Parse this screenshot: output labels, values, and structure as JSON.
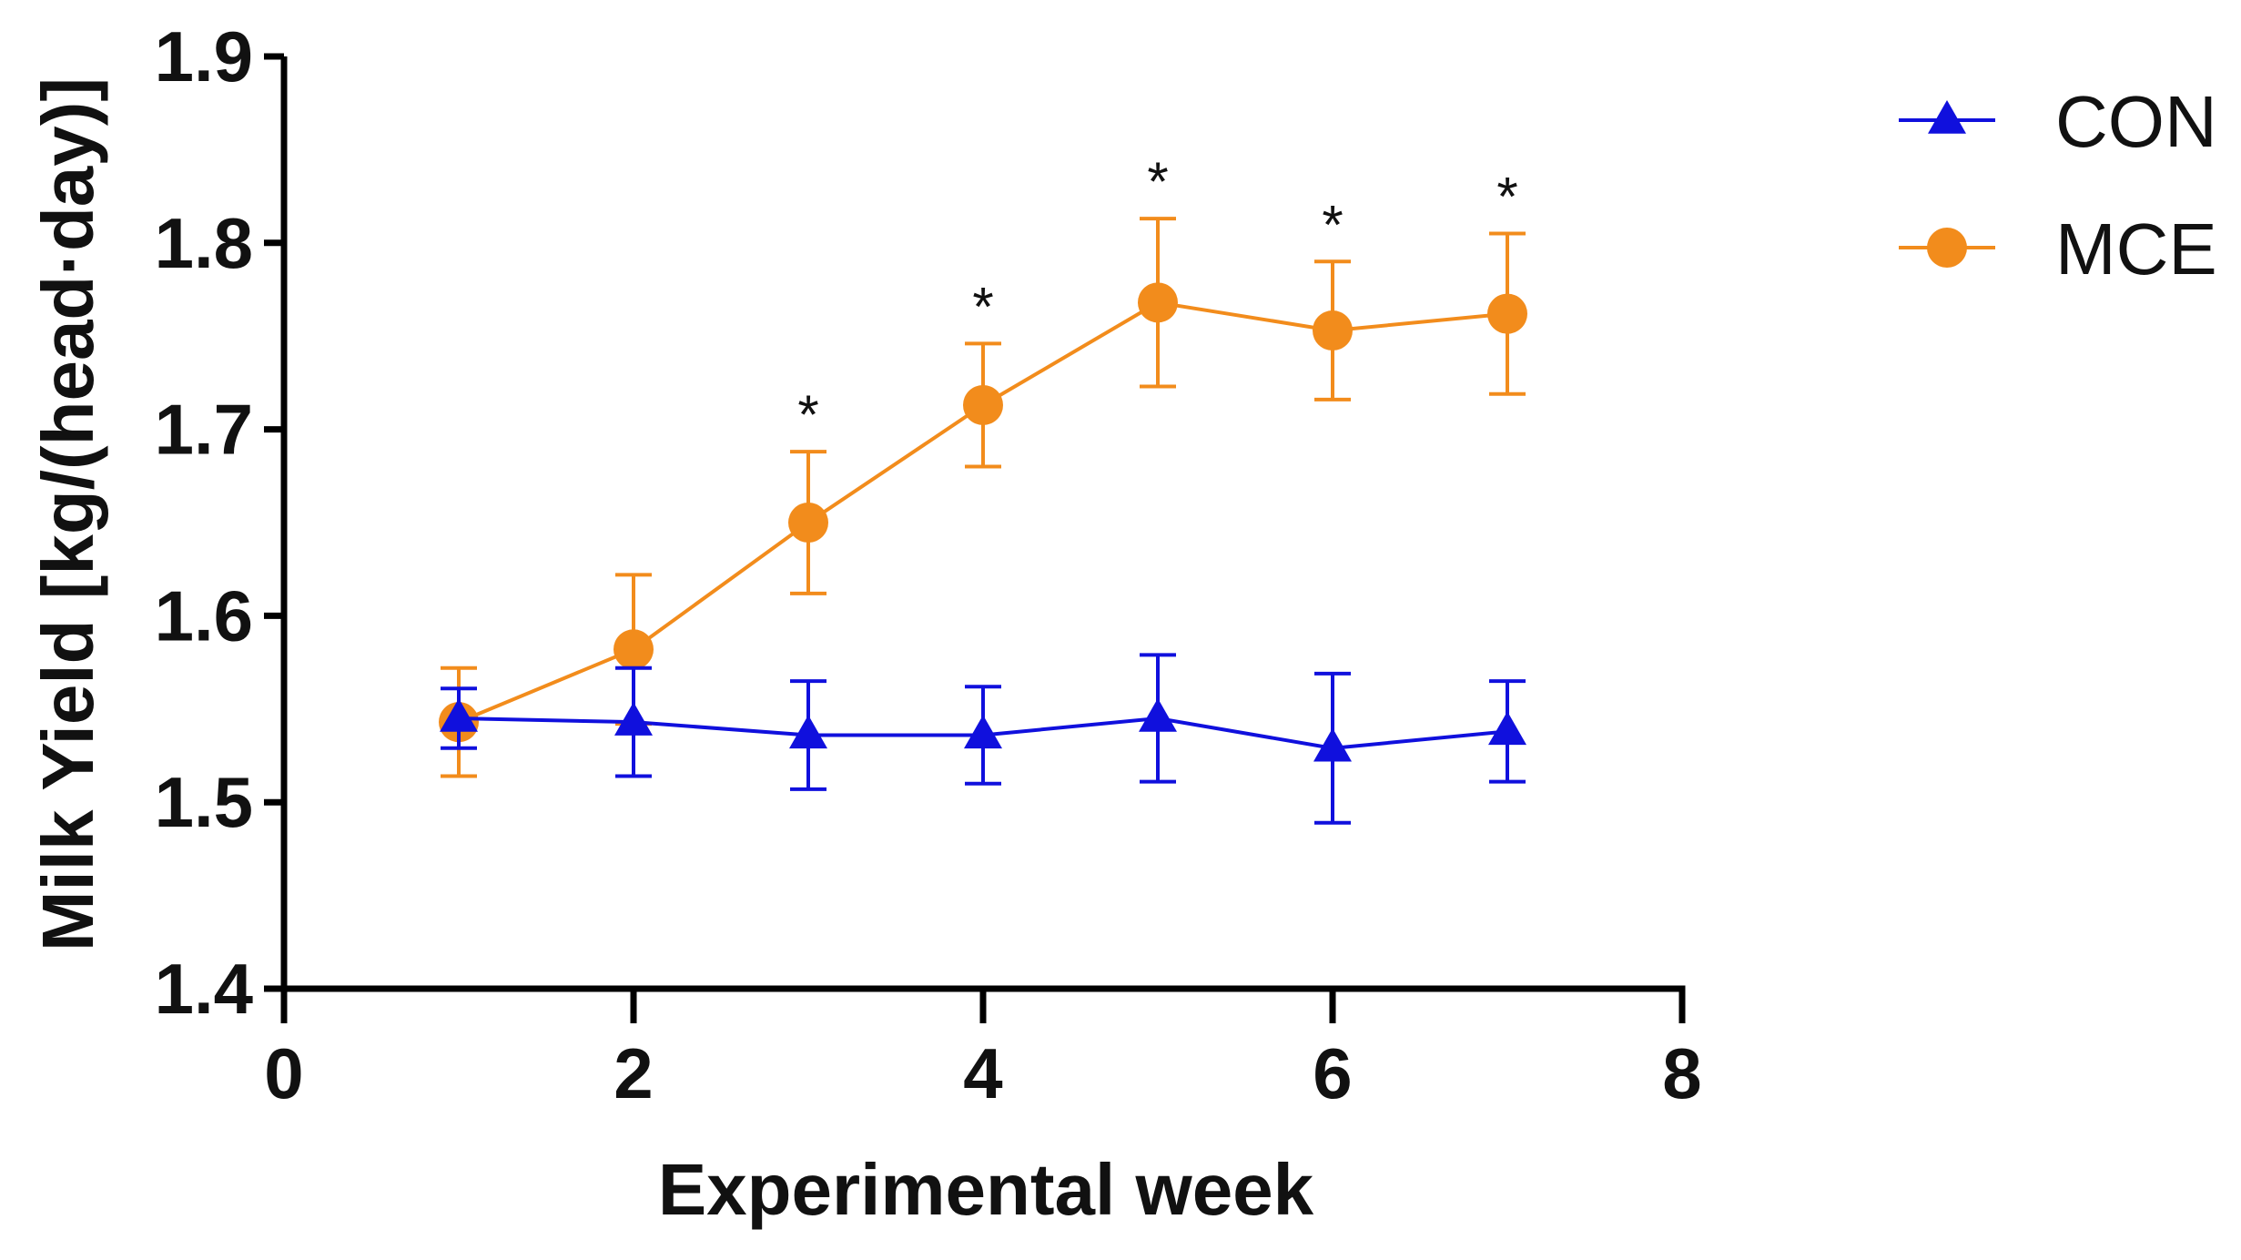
{
  "chart_data": {
    "type": "line",
    "title": "",
    "xlabel": "Experimental week",
    "ylabel": "Milk Yield [kg/(head·day)]",
    "xlim": [
      0,
      8
    ],
    "ylim": [
      1.4,
      1.9
    ],
    "x_ticks": [
      0,
      2,
      4,
      6,
      8
    ],
    "x_tick_labels": [
      "0",
      "2",
      "4",
      "6",
      "8"
    ],
    "y_ticks": [
      1.4,
      1.5,
      1.6,
      1.7,
      1.8,
      1.9
    ],
    "y_tick_labels": [
      "1.4",
      "1.5",
      "1.6",
      "1.7",
      "1.8",
      "1.9"
    ],
    "grid": false,
    "legend_position": "top-right",
    "series": [
      {
        "name": "CON",
        "color": "#1010dd",
        "marker": "triangle",
        "x": [
          1,
          2,
          3,
          4,
          5,
          6,
          7
        ],
        "values": [
          1.545,
          1.543,
          1.536,
          1.536,
          1.545,
          1.529,
          1.538
        ],
        "error": [
          0.016,
          0.029,
          0.029,
          0.026,
          0.034,
          0.04,
          0.027
        ]
      },
      {
        "name": "MCE",
        "color": "#f28c1c",
        "marker": "circle",
        "x": [
          1,
          2,
          3,
          4,
          5,
          6,
          7
        ],
        "values": [
          1.543,
          1.582,
          1.65,
          1.713,
          1.768,
          1.753,
          1.762
        ],
        "error": [
          0.029,
          0.04,
          0.038,
          0.033,
          0.045,
          0.037,
          0.043
        ]
      }
    ],
    "annotations": [
      {
        "x": 3,
        "text": "*"
      },
      {
        "x": 4,
        "text": "*"
      },
      {
        "x": 5,
        "text": "*"
      },
      {
        "x": 6,
        "text": "*"
      },
      {
        "x": 7,
        "text": "*"
      }
    ]
  }
}
